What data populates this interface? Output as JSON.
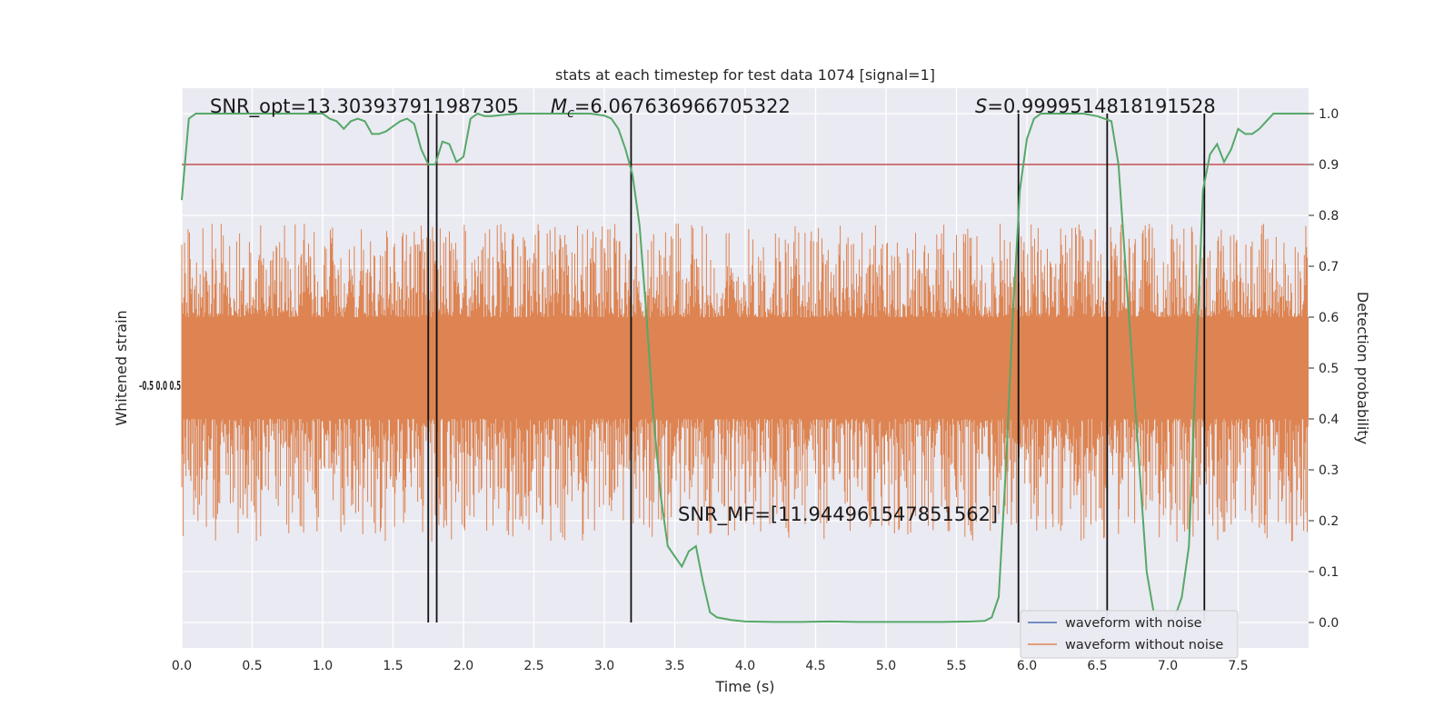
{
  "chart_data": {
    "type": "line",
    "title": "stats at each timestep for test data 1074 [signal=1]",
    "xlabel": "Time (s)",
    "ylabel_left": "Whitened strain",
    "ylabel_right": "Detection probability",
    "xlim": [
      0,
      8
    ],
    "ylim_right": [
      -0.05,
      1.05
    ],
    "x_ticks": [
      0.0,
      0.5,
      1.0,
      1.5,
      2.0,
      2.5,
      3.0,
      3.5,
      4.0,
      4.5,
      5.0,
      5.5,
      6.0,
      6.5,
      7.0,
      7.5
    ],
    "x_tick_labels": [
      "0.0",
      "0.5",
      "1.0",
      "1.5",
      "2.0",
      "2.5",
      "3.0",
      "3.5",
      "4.0",
      "4.5",
      "5.0",
      "5.5",
      "6.0",
      "6.5",
      "7.0",
      "7.5"
    ],
    "y_right_ticks": [
      0.0,
      0.1,
      0.2,
      0.3,
      0.4,
      0.5,
      0.6,
      0.7,
      0.8,
      0.9,
      1.0
    ],
    "y_right_tick_labels": [
      "0.0",
      "0.1",
      "0.2",
      "0.3",
      "0.4",
      "0.5",
      "0.6",
      "0.7",
      "0.8",
      "0.9",
      "1.0"
    ],
    "grid": true,
    "legend_position": "lower-right",
    "threshold": 0.9,
    "threshold_color": "#c44e52",
    "vertical_lines_x": [
      1.75,
      1.81,
      3.19,
      5.94,
      6.57,
      7.26
    ],
    "annotations": {
      "snr_opt": "SNR_opt=13.303937911987305",
      "mc_symbol": "M",
      "mc_sub": "c",
      "mc_value": "=6.067636966705322",
      "s_symbol": "S",
      "s_value": "=0.9999514818191528",
      "snr_mf": "SNR_MF=[11.944961547851562]"
    },
    "series": [
      {
        "name": "waveform with noise",
        "color": "#4c72b0"
      },
      {
        "name": "waveform without noise",
        "color": "#dd8452",
        "envelope_top": 0.76,
        "envelope_bottom": 0.19,
        "band_top": 0.6,
        "band_bottom": 0.4
      },
      {
        "color": "#55a868",
        "x": [
          0.0,
          0.05,
          0.1,
          0.15,
          0.2,
          0.3,
          0.4,
          0.5,
          0.6,
          0.7,
          0.8,
          0.9,
          1.0,
          1.05,
          1.1,
          1.15,
          1.2,
          1.25,
          1.3,
          1.35,
          1.4,
          1.45,
          1.5,
          1.55,
          1.6,
          1.65,
          1.7,
          1.75,
          1.8,
          1.85,
          1.9,
          1.95,
          2.0,
          2.05,
          2.1,
          2.15,
          2.2,
          2.3,
          2.4,
          2.5,
          2.6,
          2.7,
          2.8,
          2.9,
          3.0,
          3.05,
          3.1,
          3.15,
          3.2,
          3.25,
          3.3,
          3.35,
          3.4,
          3.45,
          3.5,
          3.55,
          3.6,
          3.65,
          3.7,
          3.75,
          3.8,
          3.9,
          4.0,
          4.2,
          4.4,
          4.6,
          4.8,
          5.0,
          5.2,
          5.4,
          5.6,
          5.7,
          5.75,
          5.8,
          5.85,
          5.9,
          5.95,
          6.0,
          6.05,
          6.1,
          6.2,
          6.3,
          6.4,
          6.5,
          6.55,
          6.6,
          6.65,
          6.7,
          6.75,
          6.8,
          6.85,
          6.9,
          6.95,
          7.0,
          7.05,
          7.1,
          7.15,
          7.2,
          7.25,
          7.3,
          7.35,
          7.4,
          7.45,
          7.5,
          7.55,
          7.6,
          7.65,
          7.7,
          7.75,
          7.8,
          7.85,
          7.9,
          8.0
        ],
        "y": [
          0.83,
          0.99,
          1.0,
          1.0,
          1.0,
          1.0,
          1.0,
          1.0,
          1.0,
          1.0,
          1.0,
          1.0,
          1.0,
          0.99,
          0.985,
          0.97,
          0.985,
          0.99,
          0.985,
          0.96,
          0.96,
          0.965,
          0.975,
          0.985,
          0.99,
          0.98,
          0.93,
          0.9,
          0.9,
          0.945,
          0.94,
          0.905,
          0.915,
          0.99,
          1.0,
          0.995,
          0.995,
          0.998,
          1.0,
          1.0,
          1.0,
          1.0,
          1.0,
          1.0,
          0.996,
          0.99,
          0.97,
          0.93,
          0.88,
          0.78,
          0.6,
          0.4,
          0.25,
          0.15,
          0.13,
          0.11,
          0.14,
          0.15,
          0.08,
          0.02,
          0.01,
          0.005,
          0.002,
          0.001,
          0.001,
          0.002,
          0.001,
          0.001,
          0.001,
          0.001,
          0.002,
          0.003,
          0.01,
          0.05,
          0.3,
          0.6,
          0.85,
          0.95,
          0.99,
          1.0,
          1.0,
          1.0,
          1.0,
          0.995,
          0.99,
          0.985,
          0.9,
          0.7,
          0.5,
          0.3,
          0.1,
          0.02,
          0.005,
          0.0,
          0.01,
          0.05,
          0.15,
          0.5,
          0.85,
          0.92,
          0.94,
          0.905,
          0.93,
          0.97,
          0.96,
          0.96,
          0.97,
          0.985,
          1.0,
          1.0,
          1.0,
          1.0,
          1.0
        ]
      }
    ],
    "left_axis_tick_clutter": "–0.5 0.0 0.5"
  }
}
